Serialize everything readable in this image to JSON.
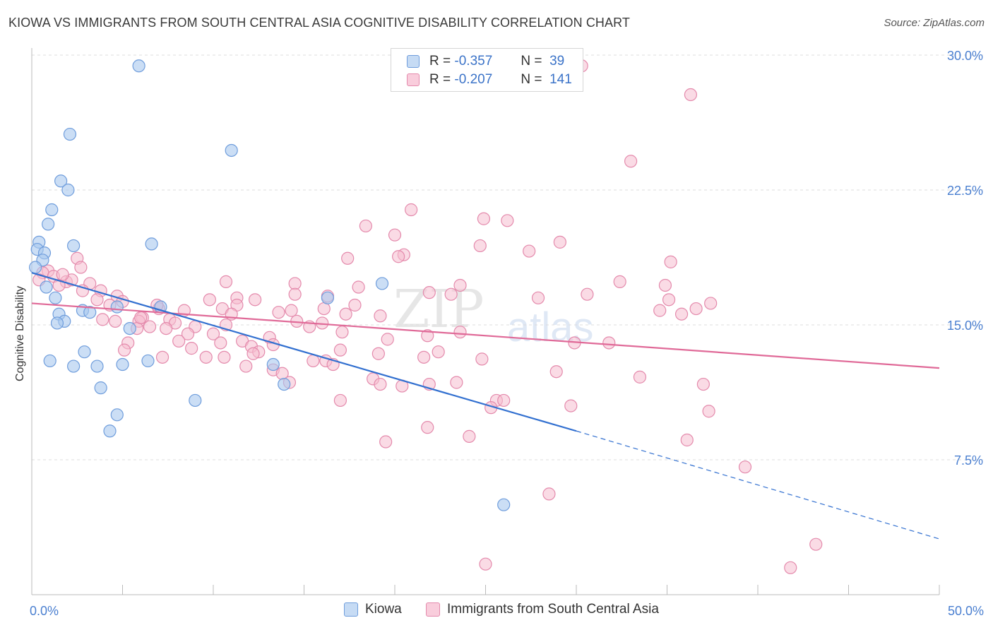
{
  "header": {
    "title": "KIOWA VS IMMIGRANTS FROM SOUTH CENTRAL ASIA COGNITIVE DISABILITY CORRELATION CHART",
    "source": "Source: ZipAtlas.com"
  },
  "watermark": {
    "zip": "ZIP",
    "atlas": "atlas"
  },
  "legend": {
    "rows": [
      {
        "r_label": "R =",
        "r_value": "-0.357",
        "n_label": "N =",
        "n_value": "39"
      },
      {
        "r_label": "R =",
        "r_value": "-0.207",
        "n_label": "N =",
        "n_value": "141"
      }
    ]
  },
  "bottom_legend": {
    "kiowa": "Kiowa",
    "immigrants": "Immigrants from South Central Asia"
  },
  "colors": {
    "kiowa_fill": "#a9c8ee",
    "kiowa_stroke": "#6f9ddc",
    "kiowa_line": "#3270d0",
    "imm_fill": "#f6bdd0",
    "imm_stroke": "#e48aac",
    "imm_line": "#e06a98",
    "tick_text": "#4a7fd0",
    "grid": "#dddddd"
  },
  "chart_data": {
    "type": "scatter",
    "title": "KIOWA VS IMMIGRANTS FROM SOUTH CENTRAL ASIA COGNITIVE DISABILITY CORRELATION CHART",
    "ylabel": "Cognitive Disability",
    "xlabel": "",
    "xlim": [
      0,
      50
    ],
    "ylim": [
      0,
      30
    ],
    "x_tick_labels": [
      "0.0%",
      "50.0%"
    ],
    "y_ticks": [
      7.5,
      15.0,
      22.5,
      30.0
    ],
    "y_tick_labels": [
      "7.5%",
      "15.0%",
      "22.5%",
      "30.0%"
    ],
    "grid": true,
    "legend_position": "top-center",
    "series": [
      {
        "name": "Kiowa",
        "r": -0.357,
        "n": 39,
        "trend": {
          "x": [
            0,
            30
          ],
          "y": [
            17.9,
            9.1
          ],
          "dashed_to": [
            50,
            3.1
          ]
        },
        "points": [
          [
            5.9,
            29.4
          ],
          [
            2.1,
            25.6
          ],
          [
            11.0,
            24.7
          ],
          [
            1.6,
            23.0
          ],
          [
            2.0,
            22.5
          ],
          [
            1.1,
            21.4
          ],
          [
            0.9,
            20.6
          ],
          [
            6.6,
            19.5
          ],
          [
            0.4,
            19.6
          ],
          [
            2.3,
            19.4
          ],
          [
            0.3,
            19.2
          ],
          [
            0.7,
            19.0
          ],
          [
            0.6,
            18.6
          ],
          [
            19.3,
            17.3
          ],
          [
            0.8,
            17.1
          ],
          [
            16.3,
            16.5
          ],
          [
            1.3,
            16.5
          ],
          [
            7.1,
            16.0
          ],
          [
            4.7,
            16.0
          ],
          [
            2.8,
            15.8
          ],
          [
            3.2,
            15.7
          ],
          [
            1.5,
            15.6
          ],
          [
            1.8,
            15.2
          ],
          [
            1.4,
            15.1
          ],
          [
            5.4,
            14.8
          ],
          [
            2.9,
            13.5
          ],
          [
            1.0,
            13.0
          ],
          [
            6.4,
            13.0
          ],
          [
            2.3,
            12.7
          ],
          [
            3.6,
            12.7
          ],
          [
            5.0,
            12.8
          ],
          [
            13.3,
            12.8
          ],
          [
            3.8,
            11.5
          ],
          [
            13.9,
            11.7
          ],
          [
            9.0,
            10.8
          ],
          [
            4.7,
            10.0
          ],
          [
            4.3,
            9.1
          ],
          [
            26.0,
            5.0
          ],
          [
            0.2,
            18.2
          ]
        ]
      },
      {
        "name": "Immigrants from South Central Asia",
        "r": -0.207,
        "n": 141,
        "trend": {
          "x": [
            0,
            50
          ],
          "y": [
            16.2,
            12.6
          ]
        },
        "points": [
          [
            30.3,
            29.4
          ],
          [
            36.3,
            27.8
          ],
          [
            33.0,
            24.1
          ],
          [
            20.9,
            21.4
          ],
          [
            24.9,
            20.9
          ],
          [
            26.2,
            20.8
          ],
          [
            18.4,
            20.5
          ],
          [
            20.0,
            20.0
          ],
          [
            29.1,
            19.6
          ],
          [
            24.7,
            19.4
          ],
          [
            27.4,
            19.1
          ],
          [
            20.5,
            18.9
          ],
          [
            20.2,
            18.8
          ],
          [
            17.4,
            18.7
          ],
          [
            35.2,
            18.5
          ],
          [
            2.5,
            18.7
          ],
          [
            0.9,
            18.0
          ],
          [
            0.6,
            17.9
          ],
          [
            1.2,
            17.7
          ],
          [
            2.7,
            18.2
          ],
          [
            0.4,
            17.5
          ],
          [
            1.9,
            17.4
          ],
          [
            3.2,
            17.3
          ],
          [
            1.5,
            17.2
          ],
          [
            10.7,
            17.4
          ],
          [
            14.5,
            17.3
          ],
          [
            32.4,
            17.4
          ],
          [
            34.9,
            17.2
          ],
          [
            18.0,
            17.1
          ],
          [
            23.6,
            17.2
          ],
          [
            21.9,
            16.8
          ],
          [
            23.1,
            16.7
          ],
          [
            30.6,
            16.7
          ],
          [
            27.9,
            16.5
          ],
          [
            16.3,
            16.6
          ],
          [
            35.1,
            16.4
          ],
          [
            14.5,
            16.7
          ],
          [
            11.3,
            16.5
          ],
          [
            4.7,
            16.6
          ],
          [
            3.8,
            16.9
          ],
          [
            5.0,
            16.3
          ],
          [
            9.8,
            16.4
          ],
          [
            12.3,
            16.4
          ],
          [
            37.4,
            16.2
          ],
          [
            3.6,
            16.4
          ],
          [
            4.3,
            16.1
          ],
          [
            7.0,
            15.9
          ],
          [
            8.4,
            15.8
          ],
          [
            10.5,
            15.9
          ],
          [
            11.3,
            16.1
          ],
          [
            16.1,
            15.9
          ],
          [
            17.8,
            16.1
          ],
          [
            14.3,
            15.8
          ],
          [
            6.9,
            16.1
          ],
          [
            34.6,
            15.8
          ],
          [
            36.6,
            15.9
          ],
          [
            35.8,
            15.6
          ],
          [
            19.2,
            15.5
          ],
          [
            17.3,
            15.6
          ],
          [
            13.6,
            15.7
          ],
          [
            6.1,
            15.4
          ],
          [
            5.9,
            15.2
          ],
          [
            7.6,
            15.3
          ],
          [
            3.9,
            15.3
          ],
          [
            4.6,
            15.2
          ],
          [
            7.9,
            15.1
          ],
          [
            9.0,
            14.9
          ],
          [
            10.7,
            15.0
          ],
          [
            14.6,
            15.2
          ],
          [
            15.3,
            14.9
          ],
          [
            16.0,
            15.1
          ],
          [
            6.5,
            14.9
          ],
          [
            7.4,
            14.8
          ],
          [
            5.8,
            14.8
          ],
          [
            8.6,
            14.5
          ],
          [
            10.0,
            14.5
          ],
          [
            13.1,
            14.3
          ],
          [
            17.1,
            14.6
          ],
          [
            21.8,
            14.4
          ],
          [
            23.6,
            14.6
          ],
          [
            19.6,
            14.2
          ],
          [
            29.9,
            14.0
          ],
          [
            31.8,
            14.0
          ],
          [
            8.1,
            14.1
          ],
          [
            10.4,
            14.0
          ],
          [
            11.6,
            14.1
          ],
          [
            12.1,
            13.8
          ],
          [
            13.3,
            13.9
          ],
          [
            5.3,
            14.0
          ],
          [
            5.1,
            13.6
          ],
          [
            8.8,
            13.7
          ],
          [
            12.5,
            13.5
          ],
          [
            12.2,
            13.4
          ],
          [
            17.0,
            13.6
          ],
          [
            19.1,
            13.4
          ],
          [
            22.4,
            13.5
          ],
          [
            9.6,
            13.2
          ],
          [
            7.2,
            13.2
          ],
          [
            10.6,
            13.2
          ],
          [
            21.6,
            13.2
          ],
          [
            24.8,
            13.1
          ],
          [
            15.5,
            13.0
          ],
          [
            16.2,
            13.0
          ],
          [
            16.6,
            12.8
          ],
          [
            11.8,
            12.7
          ],
          [
            13.3,
            12.5
          ],
          [
            13.8,
            12.3
          ],
          [
            28.9,
            12.4
          ],
          [
            33.5,
            12.1
          ],
          [
            18.8,
            12.0
          ],
          [
            19.2,
            11.7
          ],
          [
            20.4,
            11.6
          ],
          [
            21.9,
            11.7
          ],
          [
            23.4,
            11.8
          ],
          [
            37.0,
            11.7
          ],
          [
            14.2,
            11.8
          ],
          [
            17.0,
            10.8
          ],
          [
            25.6,
            10.8
          ],
          [
            26.0,
            10.8
          ],
          [
            29.7,
            10.5
          ],
          [
            25.3,
            10.4
          ],
          [
            37.3,
            10.2
          ],
          [
            21.8,
            9.3
          ],
          [
            24.1,
            8.8
          ],
          [
            19.5,
            8.5
          ],
          [
            36.1,
            8.6
          ],
          [
            39.3,
            7.1
          ],
          [
            28.5,
            5.6
          ],
          [
            25.0,
            1.7
          ],
          [
            43.2,
            2.8
          ],
          [
            41.8,
            1.5
          ],
          [
            11.0,
            15.6
          ],
          [
            6.0,
            15.4
          ],
          [
            2.8,
            16.9
          ],
          [
            2.2,
            17.5
          ],
          [
            1.7,
            17.8
          ]
        ]
      }
    ]
  }
}
